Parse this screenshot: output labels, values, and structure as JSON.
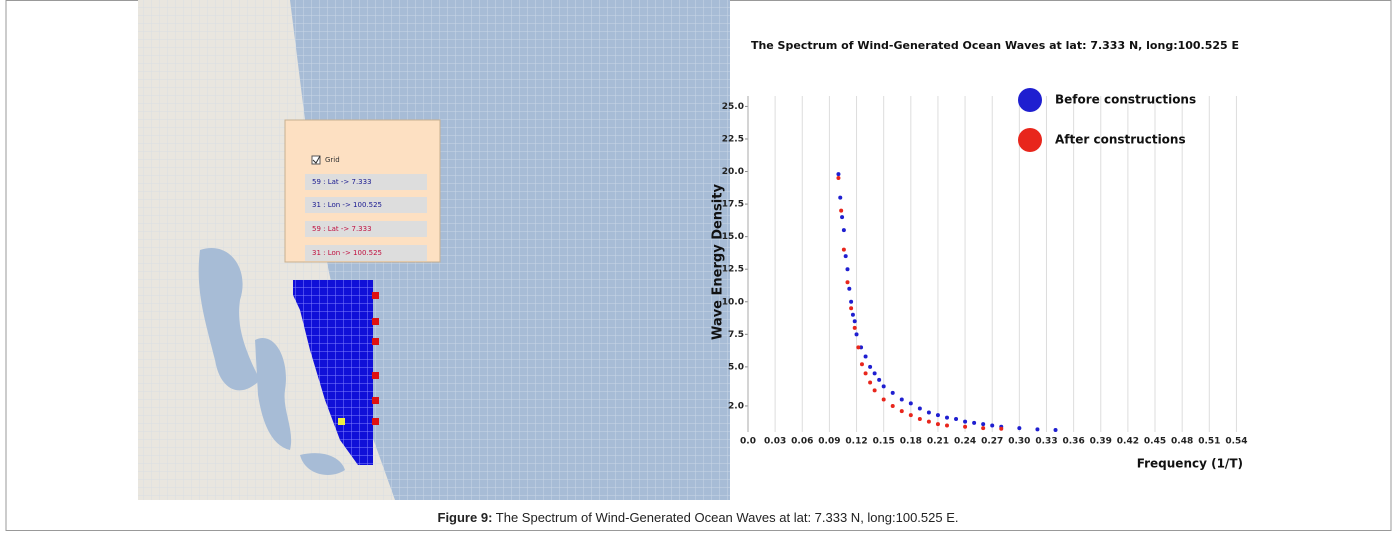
{
  "map": {
    "checkbox_label": "Grid",
    "rows": [
      "59 : Lat -> 7.333",
      "31 : Lon -> 100.525",
      "59 : Lat -> 7.333",
      "31 : Lon -> 100.525"
    ]
  },
  "chart_data": {
    "type": "scatter",
    "title": "The Spectrum of Wind-Generated Ocean Waves at lat: 7.333 N, long:100.525 E",
    "x_label": "Frequency (1/T)",
    "y_label": "Wave Energy Density",
    "xlim": [
      0,
      0.555
    ],
    "ylim": [
      0,
      25.8
    ],
    "xticks": [
      {
        "value": 0,
        "label": "0.0"
      },
      0.03,
      0.06,
      0.09,
      0.12,
      0.15,
      0.18,
      0.21,
      0.24,
      0.27,
      {
        "value": 0.3,
        "label": "0.30"
      },
      0.33,
      0.36,
      0.39,
      0.42,
      0.45,
      0.48,
      0.51,
      0.54
    ],
    "yticks": [
      {
        "value": 2,
        "label": "2.0"
      },
      {
        "value": 5,
        "label": "5.0"
      },
      7.5,
      {
        "value": 10,
        "label": "10.0"
      },
      12.5,
      {
        "value": 15,
        "label": "15.0"
      },
      17.5,
      {
        "value": 20,
        "label": "20.0"
      },
      22.5,
      {
        "value": 25,
        "label": "25.0"
      }
    ],
    "grid": true,
    "legend": "upper right",
    "series": [
      {
        "name": "Before constructions",
        "color": "#1f1fd0",
        "x": [
          0.1,
          0.102,
          0.104,
          0.106,
          0.108,
          0.11,
          0.112,
          0.114,
          0.116,
          0.118,
          0.12,
          0.125,
          0.13,
          0.135,
          0.14,
          0.145,
          0.15,
          0.16,
          0.17,
          0.18,
          0.19,
          0.2,
          0.21,
          0.22,
          0.23,
          0.24,
          0.25,
          0.26,
          0.27,
          0.28,
          0.3,
          0.32,
          0.34
        ],
        "values": [
          19.8,
          18,
          16.5,
          15.5,
          13.5,
          12.5,
          11,
          10,
          9,
          8.5,
          7.5,
          6.5,
          5.8,
          5,
          4.5,
          4,
          3.5,
          3,
          2.5,
          2.2,
          1.8,
          1.5,
          1.3,
          1.1,
          1,
          0.8,
          0.7,
          0.6,
          0.5,
          0.4,
          0.3,
          0.2,
          0.15
        ]
      },
      {
        "name": "After constructions",
        "color": "#e8261c",
        "x": [
          0.1,
          0.103,
          0.106,
          0.11,
          0.114,
          0.118,
          0.122,
          0.126,
          0.13,
          0.135,
          0.14,
          0.15,
          0.16,
          0.17,
          0.18,
          0.19,
          0.2,
          0.21,
          0.22,
          0.24,
          0.26,
          0.28
        ],
        "values": [
          19.5,
          17,
          14,
          11.5,
          9.5,
          8,
          6.5,
          5.2,
          4.5,
          3.8,
          3.2,
          2.5,
          2,
          1.6,
          1.3,
          1,
          0.8,
          0.6,
          0.5,
          0.4,
          0.3,
          0.25
        ]
      }
    ]
  },
  "caption": {
    "label": "Figure 9:",
    "text": " The Spectrum of Wind-Generated Ocean Waves at lat: 7.333 N, long:100.525 E."
  }
}
